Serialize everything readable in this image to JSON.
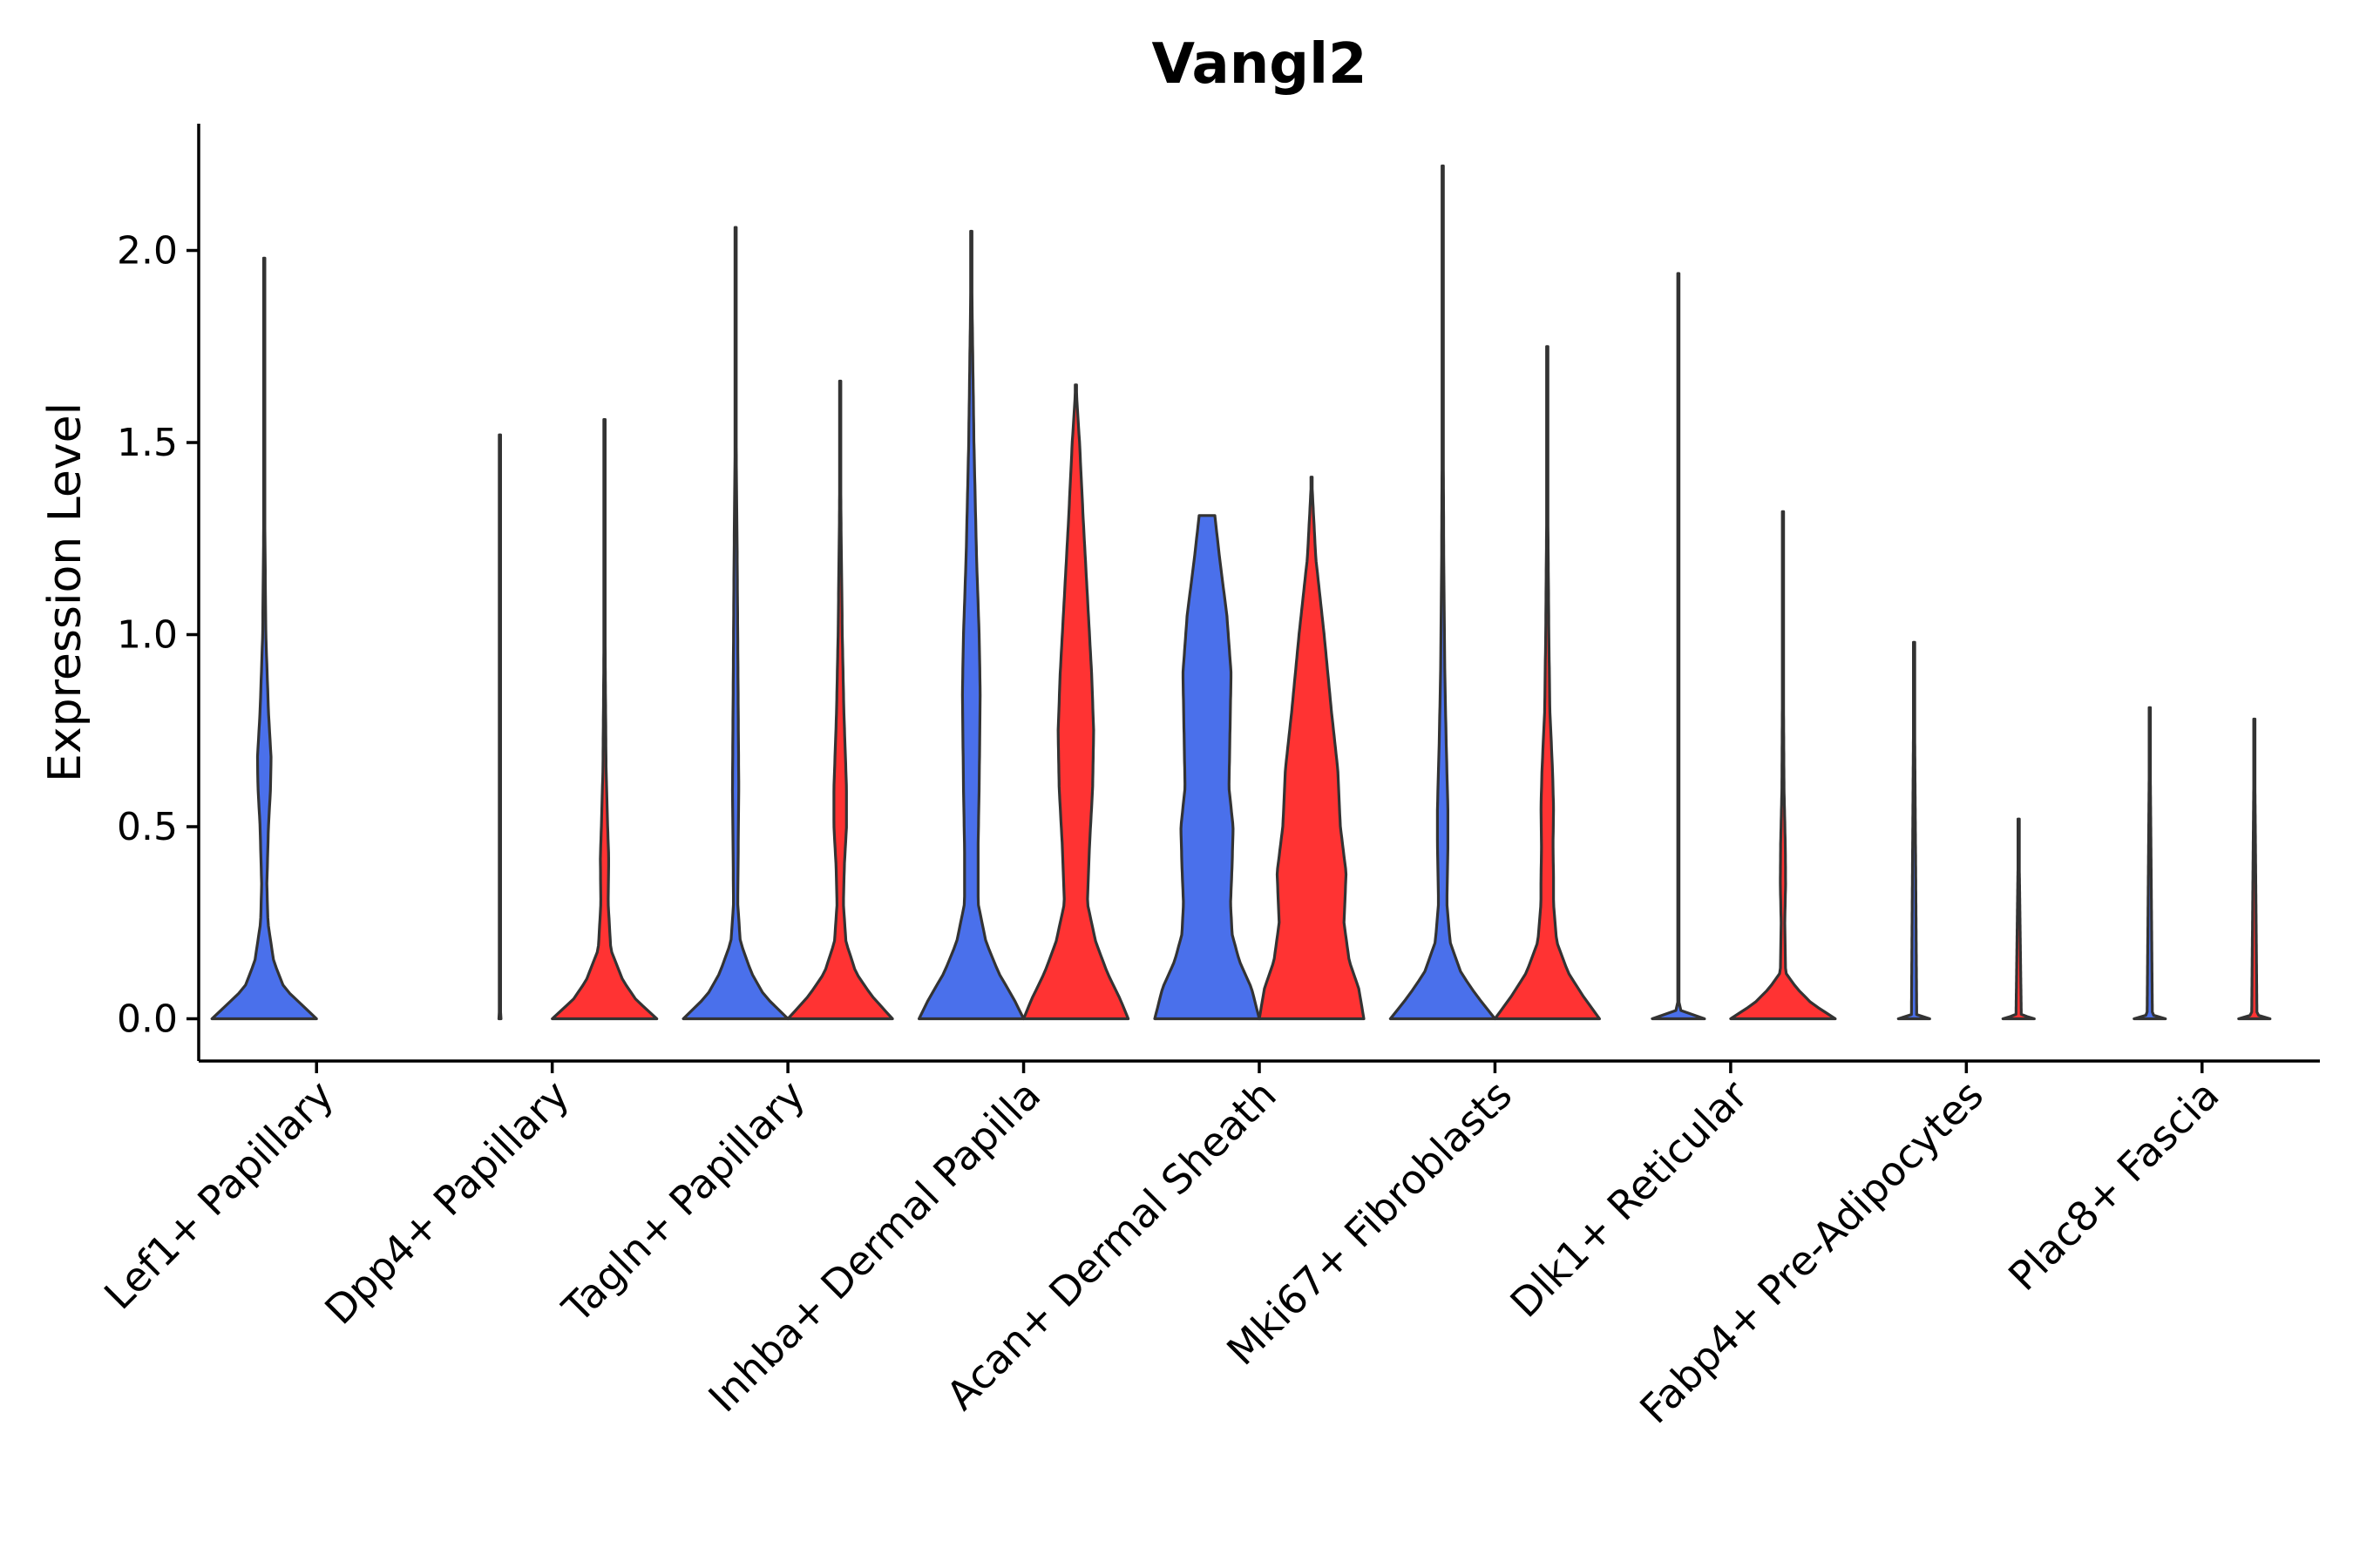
{
  "chart_data": {
    "type": "violin",
    "title": "Vangl2",
    "xlabel": "",
    "ylabel": "Expression Level",
    "ylim": [
      -0.11,
      2.33
    ],
    "yticks": [
      0.0,
      0.5,
      1.0,
      1.5,
      2.0
    ],
    "ytick_labels": [
      "0.0",
      "0.5",
      "1.0",
      "1.5",
      "2.0"
    ],
    "grid": false,
    "legend": "none",
    "colors": {
      "blue": "#4a70eb",
      "red": "#ff3333",
      "outline": "#333333"
    },
    "categories": [
      "Lef1+ Papillary",
      "Dpp4+ Papillary",
      "Tagln+ Papillary",
      "Inhba+ Dermal Papilla",
      "Acan+ Dermal Sheath",
      "Mki67+ Fibroblasts",
      "Dlk1+ Reticular",
      "Fabp4+ Pre-Adipocytes",
      "Plac8+ Fascia"
    ],
    "violins": [
      {
        "category": "Lef1+ Papillary",
        "side": "left",
        "color": "blue",
        "max": 1.98,
        "profile": [
          [
            0,
            1.0
          ],
          [
            0.08,
            0.38
          ],
          [
            0.15,
            0.18
          ],
          [
            0.25,
            0.07
          ],
          [
            0.35,
            0.05
          ],
          [
            0.5,
            0.08
          ],
          [
            0.6,
            0.12
          ],
          [
            0.68,
            0.13
          ],
          [
            0.8,
            0.08
          ],
          [
            1.0,
            0.03
          ],
          [
            1.3,
            0.01
          ],
          [
            1.6,
            0.005
          ],
          [
            1.98,
            0
          ]
        ]
      },
      {
        "category": "Lef1+ Papillary",
        "side": "right",
        "color": "red",
        "max": 0.0,
        "profile": [
          [
            0,
            0.0
          ]
        ]
      },
      {
        "category": "Dpp4+ Papillary",
        "side": "left",
        "color": "blue",
        "max": 1.52,
        "profile": [
          [
            0,
            0.02
          ],
          [
            0.02,
            0.004
          ],
          [
            1.52,
            0
          ]
        ]
      },
      {
        "category": "Dpp4+ Papillary",
        "side": "right",
        "color": "red",
        "max": 1.56,
        "profile": [
          [
            0,
            1.0
          ],
          [
            0.05,
            0.6
          ],
          [
            0.1,
            0.35
          ],
          [
            0.18,
            0.12
          ],
          [
            0.3,
            0.07
          ],
          [
            0.42,
            0.08
          ],
          [
            0.5,
            0.06
          ],
          [
            0.65,
            0.03
          ],
          [
            0.9,
            0.015
          ],
          [
            1.2,
            0.005
          ],
          [
            1.56,
            0
          ]
        ]
      },
      {
        "category": "Tagln+ Papillary",
        "side": "left",
        "color": "blue",
        "max": 2.06,
        "profile": [
          [
            0,
            1.0
          ],
          [
            0.06,
            0.55
          ],
          [
            0.12,
            0.3
          ],
          [
            0.2,
            0.09
          ],
          [
            0.3,
            0.04
          ],
          [
            0.6,
            0.06
          ],
          [
            0.8,
            0.05
          ],
          [
            1.0,
            0.04
          ],
          [
            1.2,
            0.03
          ],
          [
            1.5,
            0.01
          ],
          [
            1.8,
            0.005
          ],
          [
            2.06,
            0
          ]
        ]
      },
      {
        "category": "Tagln+ Papillary",
        "side": "right",
        "color": "red",
        "max": 1.66,
        "profile": [
          [
            0,
            1.0
          ],
          [
            0.06,
            0.6
          ],
          [
            0.12,
            0.3
          ],
          [
            0.2,
            0.11
          ],
          [
            0.3,
            0.06
          ],
          [
            0.4,
            0.08
          ],
          [
            0.5,
            0.12
          ],
          [
            0.6,
            0.12
          ],
          [
            0.8,
            0.07
          ],
          [
            1.0,
            0.04
          ],
          [
            1.3,
            0.015
          ],
          [
            1.66,
            0
          ]
        ]
      },
      {
        "category": "Inhba+ Dermal Papilla",
        "side": "left",
        "color": "blue",
        "max": 2.05,
        "profile": [
          [
            0,
            1.0
          ],
          [
            0.05,
            0.82
          ],
          [
            0.12,
            0.52
          ],
          [
            0.2,
            0.28
          ],
          [
            0.3,
            0.13
          ],
          [
            0.45,
            0.13
          ],
          [
            0.6,
            0.15
          ],
          [
            0.85,
            0.17
          ],
          [
            1.0,
            0.15
          ],
          [
            1.2,
            0.1
          ],
          [
            1.5,
            0.05
          ],
          [
            1.8,
            0.02
          ],
          [
            2.05,
            0
          ]
        ]
      },
      {
        "category": "Inhba+ Dermal Papilla",
        "side": "right",
        "color": "red",
        "max": 1.65,
        "profile": [
          [
            0,
            1.0
          ],
          [
            0.05,
            0.85
          ],
          [
            0.12,
            0.6
          ],
          [
            0.2,
            0.38
          ],
          [
            0.3,
            0.22
          ],
          [
            0.45,
            0.26
          ],
          [
            0.6,
            0.32
          ],
          [
            0.75,
            0.34
          ],
          [
            0.9,
            0.3
          ],
          [
            1.1,
            0.22
          ],
          [
            1.3,
            0.14
          ],
          [
            1.5,
            0.07
          ],
          [
            1.65,
            0
          ]
        ]
      },
      {
        "category": "Acan+ Dermal Sheath",
        "side": "left",
        "color": "blue",
        "max": 1.31,
        "profile": [
          [
            0,
            1.0
          ],
          [
            0.08,
            0.85
          ],
          [
            0.15,
            0.62
          ],
          [
            0.22,
            0.48
          ],
          [
            0.3,
            0.45
          ],
          [
            0.4,
            0.48
          ],
          [
            0.5,
            0.5
          ],
          [
            0.6,
            0.42
          ],
          [
            0.75,
            0.44
          ],
          [
            0.9,
            0.46
          ],
          [
            1.05,
            0.38
          ],
          [
            1.2,
            0.24
          ],
          [
            1.31,
            0.15
          ]
        ]
      },
      {
        "category": "Acan+ Dermal Sheath",
        "side": "right",
        "color": "red",
        "max": 1.41,
        "profile": [
          [
            0,
            1.0
          ],
          [
            0.08,
            0.9
          ],
          [
            0.15,
            0.72
          ],
          [
            0.25,
            0.62
          ],
          [
            0.38,
            0.66
          ],
          [
            0.5,
            0.55
          ],
          [
            0.65,
            0.5
          ],
          [
            0.8,
            0.38
          ],
          [
            1.0,
            0.24
          ],
          [
            1.2,
            0.08
          ],
          [
            1.41,
            0
          ]
        ]
      },
      {
        "category": "Mki67+ Fibroblasts",
        "side": "left",
        "color": "blue",
        "max": 2.22,
        "profile": [
          [
            0,
            1.0
          ],
          [
            0.06,
            0.65
          ],
          [
            0.12,
            0.35
          ],
          [
            0.2,
            0.14
          ],
          [
            0.3,
            0.08
          ],
          [
            0.45,
            0.1
          ],
          [
            0.55,
            0.1
          ],
          [
            0.7,
            0.07
          ],
          [
            0.9,
            0.04
          ],
          [
            1.2,
            0.02
          ],
          [
            1.6,
            0.008
          ],
          [
            2.22,
            0
          ]
        ]
      },
      {
        "category": "Mki67+ Fibroblasts",
        "side": "right",
        "color": "red",
        "max": 1.75,
        "profile": [
          [
            0,
            1.0
          ],
          [
            0.06,
            0.68
          ],
          [
            0.12,
            0.4
          ],
          [
            0.2,
            0.18
          ],
          [
            0.3,
            0.12
          ],
          [
            0.36,
            0.12
          ],
          [
            0.45,
            0.11
          ],
          [
            0.55,
            0.12
          ],
          [
            0.65,
            0.1
          ],
          [
            0.8,
            0.05
          ],
          [
            1.0,
            0.03
          ],
          [
            1.3,
            0.012
          ],
          [
            1.75,
            0
          ]
        ]
      },
      {
        "category": "Dlk1+ Reticular",
        "side": "left",
        "color": "blue",
        "max": 1.94,
        "profile": [
          [
            0,
            0.5
          ],
          [
            0.01,
            0.1
          ],
          [
            0.03,
            0.01
          ],
          [
            1.94,
            0
          ]
        ]
      },
      {
        "category": "Dlk1+ Reticular",
        "side": "right",
        "color": "red",
        "max": 1.32,
        "profile": [
          [
            0,
            1.0
          ],
          [
            0.04,
            0.55
          ],
          [
            0.08,
            0.26
          ],
          [
            0.12,
            0.05
          ],
          [
            0.25,
            0.035
          ],
          [
            0.35,
            0.05
          ],
          [
            0.45,
            0.045
          ],
          [
            0.6,
            0.02
          ],
          [
            0.9,
            0.008
          ],
          [
            1.32,
            0
          ]
        ]
      },
      {
        "category": "Fabp4+ Pre-Adipocytes",
        "side": "left",
        "color": "blue",
        "max": 0.98,
        "profile": [
          [
            0,
            0.3
          ],
          [
            0.01,
            0.05
          ],
          [
            0.98,
            0
          ]
        ]
      },
      {
        "category": "Fabp4+ Pre-Adipocytes",
        "side": "right",
        "color": "red",
        "max": 0.52,
        "profile": [
          [
            0,
            0.3
          ],
          [
            0.01,
            0.05
          ],
          [
            0.52,
            0
          ]
        ]
      },
      {
        "category": "Plac8+ Fascia",
        "side": "left",
        "color": "blue",
        "max": 0.81,
        "profile": [
          [
            0,
            0.3
          ],
          [
            0.01,
            0.05
          ],
          [
            0.81,
            0
          ]
        ]
      },
      {
        "category": "Plac8+ Fascia",
        "side": "right",
        "color": "red",
        "max": 0.78,
        "profile": [
          [
            0,
            0.3
          ],
          [
            0.01,
            0.05
          ],
          [
            0.78,
            0
          ]
        ]
      }
    ]
  }
}
